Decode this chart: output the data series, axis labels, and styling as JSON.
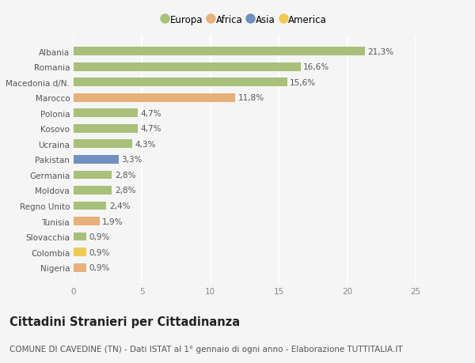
{
  "categories": [
    "Albania",
    "Romania",
    "Macedonia d/N.",
    "Marocco",
    "Polonia",
    "Kosovo",
    "Ucraina",
    "Pakistan",
    "Germania",
    "Moldova",
    "Regno Unito",
    "Tunisia",
    "Slovacchia",
    "Colombia",
    "Nigeria"
  ],
  "values": [
    21.3,
    16.6,
    15.6,
    11.8,
    4.7,
    4.7,
    4.3,
    3.3,
    2.8,
    2.8,
    2.4,
    1.9,
    0.9,
    0.9,
    0.9
  ],
  "labels": [
    "21,3%",
    "16,6%",
    "15,6%",
    "11,8%",
    "4,7%",
    "4,7%",
    "4,3%",
    "3,3%",
    "2,8%",
    "2,8%",
    "2,4%",
    "1,9%",
    "0,9%",
    "0,9%",
    "0,9%"
  ],
  "colors": [
    "#a8c07a",
    "#a8c07a",
    "#a8c07a",
    "#e8b07a",
    "#a8c07a",
    "#a8c07a",
    "#a8c07a",
    "#7090c0",
    "#a8c07a",
    "#a8c07a",
    "#a8c07a",
    "#e8b07a",
    "#a8c07a",
    "#f0c855",
    "#e8b07a"
  ],
  "legend_labels": [
    "Europa",
    "Africa",
    "Asia",
    "America"
  ],
  "legend_colors": [
    "#a8c07a",
    "#e8b07a",
    "#7090c0",
    "#f0c855"
  ],
  "xlim": [
    0,
    25
  ],
  "xticks": [
    0,
    5,
    10,
    15,
    20,
    25
  ],
  "title": "Cittadini Stranieri per Cittadinanza",
  "subtitle": "COMUNE DI CAVEDINE (TN) - Dati ISTAT al 1° gennaio di ogni anno - Elaborazione TUTTITALIA.IT",
  "bg_color": "#f5f5f5",
  "bar_height": 0.55,
  "title_fontsize": 10.5,
  "subtitle_fontsize": 7.5,
  "label_fontsize": 7.5,
  "tick_fontsize": 7.5,
  "legend_fontsize": 8.5
}
